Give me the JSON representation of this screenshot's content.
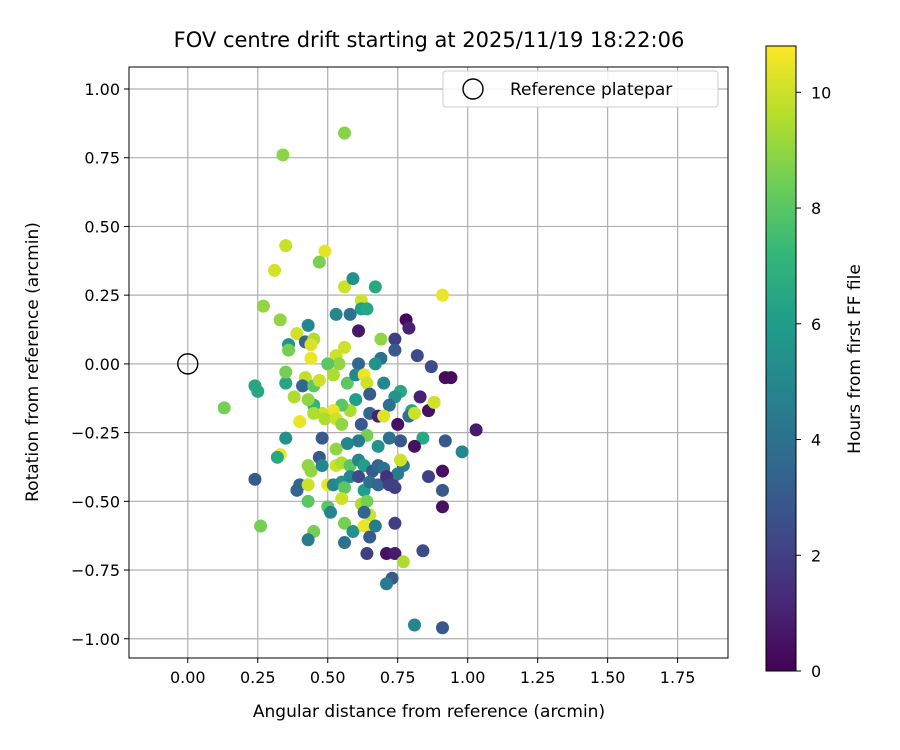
{
  "chart_data": {
    "type": "scatter",
    "title": "FOV centre drift starting at 2025/11/19 18:22:06",
    "xlabel": "Angular distance from reference (arcmin)",
    "ylabel": "Rotation from reference (arcmin)",
    "xlim": [
      -0.21,
      1.93
    ],
    "ylim": [
      -1.07,
      1.08
    ],
    "xticks": [
      0.0,
      0.25,
      0.5,
      0.75,
      1.0,
      1.25,
      1.5,
      1.75
    ],
    "xtick_labels": [
      "0.00",
      "0.25",
      "0.50",
      "0.75",
      "1.00",
      "1.25",
      "1.50",
      "1.75"
    ],
    "yticks": [
      -1.0,
      -0.75,
      -0.5,
      -0.25,
      0.0,
      0.25,
      0.5,
      0.75,
      1.0
    ],
    "ytick_labels": [
      "−1.00",
      "−0.75",
      "−0.50",
      "−0.25",
      "0.00",
      "0.25",
      "0.50",
      "0.75",
      "1.00"
    ],
    "grid": true,
    "legend": {
      "position": "top-right",
      "label": "Reference platepar"
    },
    "reference_point": {
      "x": 0.0,
      "y": 0.0
    },
    "colorbar": {
      "label": "Hours from first FF file",
      "colormap": "viridis",
      "range": [
        0,
        10.8
      ],
      "ticks": [
        0,
        2,
        4,
        6,
        8,
        10
      ],
      "tick_labels": [
        "0",
        "2",
        "4",
        "6",
        "8",
        "10"
      ]
    },
    "points": [
      [
        0.56,
        0.84,
        8.8
      ],
      [
        0.34,
        0.76,
        8.9
      ],
      [
        0.35,
        0.43,
        9.9
      ],
      [
        0.49,
        0.41,
        10.4
      ],
      [
        0.31,
        0.34,
        10.1
      ],
      [
        0.47,
        0.37,
        8.6
      ],
      [
        0.56,
        0.28,
        10.0
      ],
      [
        0.59,
        0.31,
        5.5
      ],
      [
        0.27,
        0.21,
        9.0
      ],
      [
        0.62,
        0.23,
        10.0
      ],
      [
        0.67,
        0.28,
        6.5
      ],
      [
        0.91,
        0.25,
        10.5
      ],
      [
        0.33,
        0.16,
        9.0
      ],
      [
        0.53,
        0.18,
        5.0
      ],
      [
        0.58,
        0.18,
        4.0
      ],
      [
        0.62,
        0.2,
        6.0
      ],
      [
        0.64,
        0.2,
        6.4
      ],
      [
        0.78,
        0.16,
        0.2
      ],
      [
        0.79,
        0.13,
        1.0
      ],
      [
        0.61,
        0.12,
        0.7
      ],
      [
        0.43,
        0.14,
        5.0
      ],
      [
        0.39,
        0.11,
        10.0
      ],
      [
        0.42,
        0.08,
        3.5
      ],
      [
        0.45,
        0.09,
        9.5
      ],
      [
        0.44,
        0.07,
        10.2
      ],
      [
        0.36,
        0.07,
        5.5
      ],
      [
        0.36,
        0.05,
        8.5
      ],
      [
        0.56,
        0.06,
        10.0
      ],
      [
        0.69,
        0.09,
        9.0
      ],
      [
        0.74,
        0.09,
        2.0
      ],
      [
        0.82,
        0.03,
        2.5
      ],
      [
        0.74,
        0.05,
        3.0
      ],
      [
        0.61,
        0.0,
        3.5
      ],
      [
        0.69,
        0.02,
        4.0
      ],
      [
        0.67,
        0.0,
        5.5
      ],
      [
        0.53,
        0.03,
        10.0
      ],
      [
        0.54,
        0.0,
        9.0
      ],
      [
        0.44,
        0.02,
        10.5
      ],
      [
        0.5,
        0.0,
        8.0
      ],
      [
        0.87,
        -0.01,
        2.5
      ],
      [
        0.92,
        -0.05,
        0.3
      ],
      [
        0.94,
        -0.05,
        0.3
      ],
      [
        0.24,
        -0.08,
        6.4
      ],
      [
        0.25,
        -0.1,
        6.4
      ],
      [
        0.35,
        -0.07,
        6.4
      ],
      [
        0.35,
        -0.03,
        8.5
      ],
      [
        0.42,
        -0.05,
        9.8
      ],
      [
        0.41,
        -0.08,
        3.5
      ],
      [
        0.45,
        -0.08,
        8.0
      ],
      [
        0.47,
        -0.06,
        10.0
      ],
      [
        0.52,
        -0.04,
        9.5
      ],
      [
        0.57,
        -0.07,
        8.0
      ],
      [
        0.6,
        -0.04,
        5.0
      ],
      [
        0.63,
        -0.04,
        10.5
      ],
      [
        0.64,
        -0.07,
        10.0
      ],
      [
        0.7,
        -0.07,
        5.0
      ],
      [
        0.76,
        -0.1,
        6.5
      ],
      [
        0.74,
        -0.12,
        5.5
      ],
      [
        0.83,
        -0.12,
        1.0
      ],
      [
        0.86,
        -0.17,
        0.5
      ],
      [
        0.88,
        -0.14,
        10.0
      ],
      [
        0.8,
        -0.17,
        6.5
      ],
      [
        0.79,
        -0.19,
        4.0
      ],
      [
        0.72,
        -0.15,
        4.0
      ],
      [
        0.65,
        -0.11,
        3.0
      ],
      [
        0.6,
        -0.13,
        6.0
      ],
      [
        0.58,
        -0.17,
        9.5
      ],
      [
        0.55,
        -0.15,
        8.0
      ],
      [
        0.52,
        -0.17,
        10.5
      ],
      [
        0.48,
        -0.18,
        10.0
      ],
      [
        0.45,
        -0.15,
        7.0
      ],
      [
        0.43,
        -0.13,
        9.0
      ],
      [
        0.38,
        -0.12,
        9.5
      ],
      [
        0.45,
        -0.18,
        9.5
      ],
      [
        0.13,
        -0.16,
        8.5
      ],
      [
        0.4,
        -0.21,
        10.5
      ],
      [
        0.49,
        -0.2,
        9.5
      ],
      [
        0.53,
        -0.2,
        10.0
      ],
      [
        0.55,
        -0.22,
        9.0
      ],
      [
        0.62,
        -0.22,
        3.0
      ],
      [
        0.65,
        -0.18,
        3.5
      ],
      [
        0.68,
        -0.19,
        1.0
      ],
      [
        0.7,
        -0.19,
        10.3
      ],
      [
        0.75,
        -0.22,
        0.5
      ],
      [
        0.81,
        -0.18,
        10.0
      ],
      [
        0.84,
        -0.27,
        6.5
      ],
      [
        0.92,
        -0.28,
        3.0
      ],
      [
        0.98,
        -0.32,
        5.0
      ],
      [
        1.03,
        -0.24,
        0.8
      ],
      [
        0.76,
        -0.28,
        3.0
      ],
      [
        0.72,
        -0.27,
        4.0
      ],
      [
        0.68,
        -0.3,
        5.5
      ],
      [
        0.64,
        -0.26,
        8.5
      ],
      [
        0.61,
        -0.28,
        4.5
      ],
      [
        0.57,
        -0.29,
        5.0
      ],
      [
        0.53,
        -0.31,
        9.0
      ],
      [
        0.48,
        -0.27,
        3.0
      ],
      [
        0.35,
        -0.27,
        5.5
      ],
      [
        0.33,
        -0.33,
        10.5
      ],
      [
        0.32,
        -0.34,
        6.5
      ],
      [
        0.43,
        -0.37,
        9.0
      ],
      [
        0.44,
        -0.39,
        9.0
      ],
      [
        0.47,
        -0.34,
        3.0
      ],
      [
        0.48,
        -0.37,
        5.0
      ],
      [
        0.53,
        -0.37,
        10.0
      ],
      [
        0.55,
        -0.36,
        9.5
      ],
      [
        0.58,
        -0.37,
        8.0
      ],
      [
        0.61,
        -0.35,
        5.0
      ],
      [
        0.63,
        -0.37,
        6.0
      ],
      [
        0.66,
        -0.39,
        3.0
      ],
      [
        0.68,
        -0.37,
        3.5
      ],
      [
        0.7,
        -0.38,
        4.0
      ],
      [
        0.73,
        -0.42,
        2.0
      ],
      [
        0.75,
        -0.4,
        4.5
      ],
      [
        0.77,
        -0.37,
        4.5
      ],
      [
        0.76,
        -0.35,
        10.0
      ],
      [
        0.81,
        -0.3,
        0.5
      ],
      [
        0.86,
        -0.41,
        2.0
      ],
      [
        0.91,
        -0.39,
        0.5
      ],
      [
        0.91,
        -0.46,
        3.0
      ],
      [
        0.91,
        -0.52,
        0.5
      ],
      [
        0.24,
        -0.42,
        3.0
      ],
      [
        0.39,
        -0.46,
        3.5
      ],
      [
        0.4,
        -0.44,
        3.5
      ],
      [
        0.43,
        -0.44,
        10.0
      ],
      [
        0.43,
        -0.5,
        8.0
      ],
      [
        0.5,
        -0.44,
        10.5
      ],
      [
        0.52,
        -0.44,
        5.0
      ],
      [
        0.55,
        -0.43,
        5.5
      ],
      [
        0.56,
        -0.45,
        8.0
      ],
      [
        0.58,
        -0.41,
        5.0
      ],
      [
        0.61,
        -0.41,
        2.5
      ],
      [
        0.63,
        -0.46,
        6.0
      ],
      [
        0.65,
        -0.43,
        4.0
      ],
      [
        0.68,
        -0.44,
        3.5
      ],
      [
        0.71,
        -0.41,
        1.5
      ],
      [
        0.72,
        -0.44,
        2.0
      ],
      [
        0.74,
        -0.45,
        2.0
      ],
      [
        0.5,
        -0.52,
        8.0
      ],
      [
        0.55,
        -0.49,
        10.0
      ],
      [
        0.62,
        -0.51,
        9.5
      ],
      [
        0.64,
        -0.5,
        8.5
      ],
      [
        0.65,
        -0.55,
        10.0
      ],
      [
        0.63,
        -0.54,
        3.5
      ],
      [
        0.51,
        -0.54,
        5.0
      ],
      [
        0.26,
        -0.59,
        8.5
      ],
      [
        0.45,
        -0.61,
        8.5
      ],
      [
        0.56,
        -0.58,
        8.5
      ],
      [
        0.59,
        -0.61,
        5.5
      ],
      [
        0.63,
        -0.59,
        10.5
      ],
      [
        0.65,
        -0.63,
        3.0
      ],
      [
        0.67,
        -0.59,
        4.5
      ],
      [
        0.43,
        -0.64,
        4.5
      ],
      [
        0.56,
        -0.65,
        4.0
      ],
      [
        0.64,
        -0.69,
        2.0
      ],
      [
        0.71,
        -0.69,
        0.5
      ],
      [
        0.74,
        -0.69,
        0.8
      ],
      [
        0.74,
        -0.58,
        2.0
      ],
      [
        0.84,
        -0.68,
        2.5
      ],
      [
        0.77,
        -0.72,
        9.5
      ],
      [
        0.73,
        -0.78,
        3.0
      ],
      [
        0.71,
        -0.8,
        4.5
      ],
      [
        0.81,
        -0.95,
        5.0
      ],
      [
        0.91,
        -0.96,
        3.0
      ]
    ]
  }
}
